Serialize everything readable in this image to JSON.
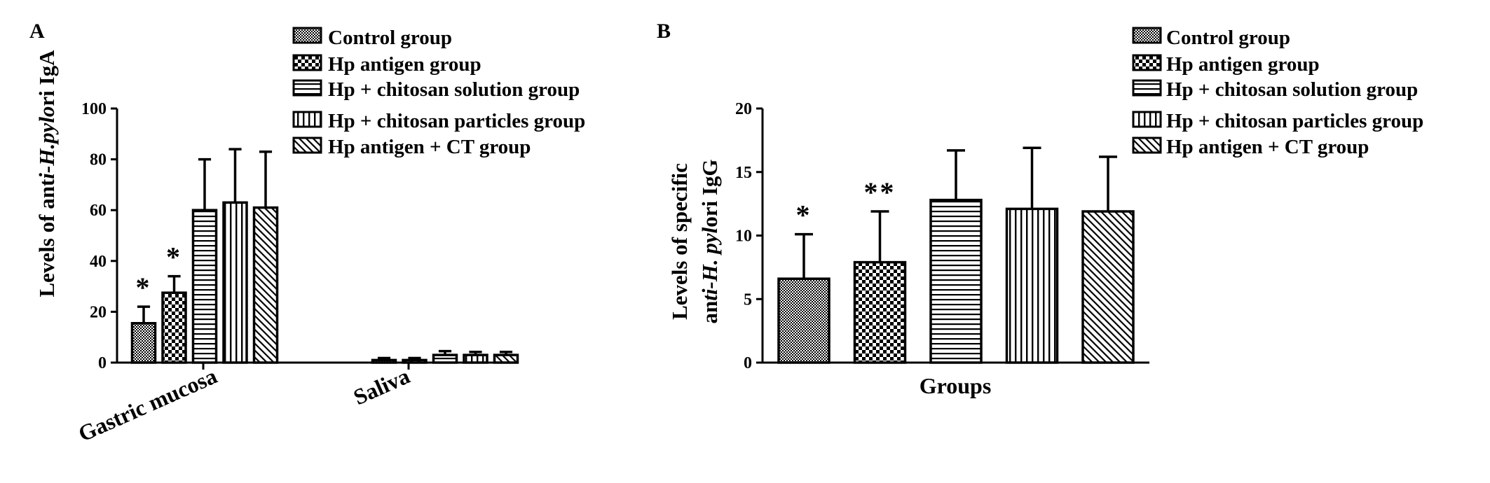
{
  "chart_data": [
    {
      "panel_label": "A",
      "type": "bar",
      "ylabel_parts": [
        "Levels of ant",
        "i-H.pylo",
        "ri IgA"
      ],
      "ylim": [
        0,
        100
      ],
      "yticks": [
        0,
        20,
        40,
        60,
        80,
        100
      ],
      "categories": [
        "Gastric mucosa",
        "Saliva"
      ],
      "series": [
        {
          "name": "Control group",
          "pattern": "dots",
          "values": [
            15.5,
            1
          ],
          "errors": [
            6.5,
            0.8
          ],
          "annotations": [
            "*",
            ""
          ]
        },
        {
          "name": "Hp antigen group",
          "pattern": "checker",
          "values": [
            27.5,
            1
          ],
          "errors": [
            6.5,
            0.8
          ],
          "annotations": [
            "*",
            ""
          ]
        },
        {
          "name": "Hp + chitosan solution group",
          "pattern": "hlines",
          "values": [
            60,
            3
          ],
          "errors": [
            20,
            1.5
          ],
          "annotations": [
            "",
            ""
          ]
        },
        {
          "name": "Hp + chitosan particles group",
          "pattern": "vlines",
          "values": [
            63,
            3
          ],
          "errors": [
            21,
            1.2
          ],
          "annotations": [
            "",
            ""
          ]
        },
        {
          "name": "Hp antigen + CT group",
          "pattern": "diag",
          "values": [
            61,
            3
          ],
          "errors": [
            22,
            1.2
          ],
          "annotations": [
            "",
            ""
          ]
        }
      ],
      "legend_position": "top"
    },
    {
      "panel_label": "B",
      "type": "bar",
      "xlabel": "Groups",
      "ylabel_line1": "Levels of specific",
      "ylabel_line2_parts": [
        "an",
        "ti-H. pyl",
        "ori IgG"
      ],
      "ylim": [
        0,
        20
      ],
      "yticks": [
        0,
        5,
        10,
        15,
        20
      ],
      "series": [
        {
          "name": "Control group",
          "pattern": "dots",
          "value": 6.6,
          "error": 3.5,
          "annotation": "*"
        },
        {
          "name": "Hp antigen group",
          "pattern": "checker",
          "value": 7.9,
          "error": 4,
          "annotation": "**"
        },
        {
          "name": "Hp + chitosan solution group",
          "pattern": "hlines",
          "value": 12.8,
          "error": 3.9,
          "annotation": ""
        },
        {
          "name": "Hp + chitosan particles group",
          "pattern": "vlines",
          "value": 12.1,
          "error": 4.8,
          "annotation": ""
        },
        {
          "name": "Hp antigen + CT group",
          "pattern": "diag",
          "value": 11.9,
          "error": 4.3,
          "annotation": ""
        }
      ],
      "legend_position": "top-right"
    }
  ]
}
